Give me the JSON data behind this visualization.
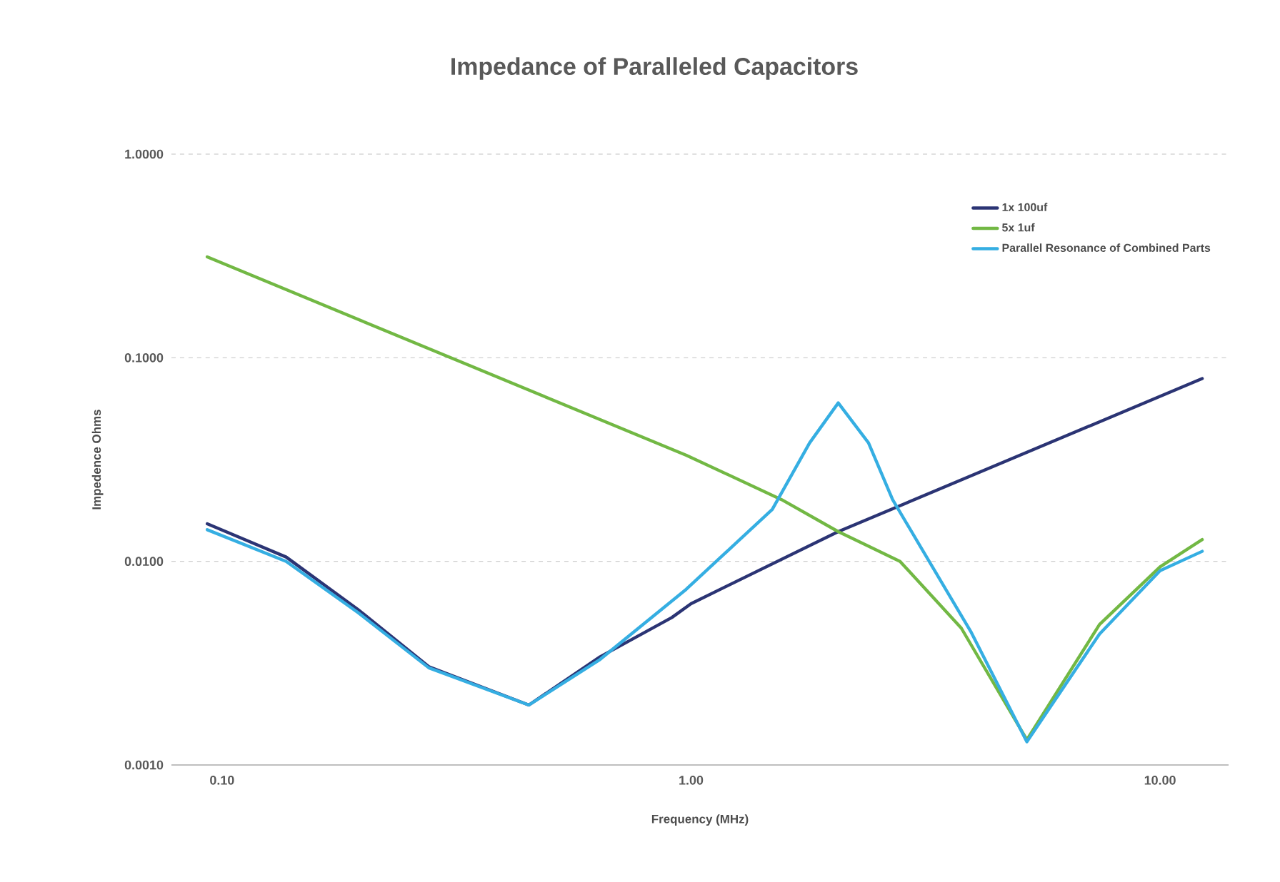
{
  "chart_data": {
    "type": "line",
    "title": "Impedance of Paralleled Capacitors",
    "xlabel": "Frequency (MHz)",
    "ylabel": "Impedence Ohms",
    "log": "xy",
    "grid": "y",
    "legend": "top right",
    "line_style": "solid",
    "xlim": [
      0.078,
      14
    ],
    "ylim": [
      0.001,
      1
    ],
    "xticks": [
      {
        "value": 0.1,
        "label": "0.10"
      },
      {
        "value": 1,
        "label": "1.00"
      },
      {
        "value": 10,
        "label": "10.00"
      }
    ],
    "yticks": [
      {
        "value": 0.001,
        "label": "0.0010"
      },
      {
        "value": 0.01,
        "label": "0.0100"
      },
      {
        "value": 0.1,
        "label": "0.1000"
      },
      {
        "value": 1,
        "label": "1.0000"
      }
    ],
    "series": [
      {
        "name": "1x 100uf",
        "color": "#2b3474",
        "x": [
          0.093,
          0.137,
          0.195,
          0.276,
          0.451,
          0.64,
          0.91,
          1.0,
          2.06,
          12.3
        ],
        "values": [
          0.0153,
          0.0105,
          0.0058,
          0.00304,
          0.00197,
          0.0034,
          0.0053,
          0.0062,
          0.014,
          0.079
        ]
      },
      {
        "name": "5x 1uf",
        "color": "#72b844",
        "x": [
          0.093,
          0.977,
          1.56,
          2.06,
          2.79,
          3.77,
          5.2,
          7.43,
          10.0,
          12.3
        ],
        "values": [
          0.313,
          0.0332,
          0.0201,
          0.014,
          0.01,
          0.0047,
          0.00133,
          0.0049,
          0.0094,
          0.0128
        ]
      },
      {
        "name": "Parallel Resonance of Combined Parts",
        "color": "#35aee2",
        "x": [
          0.093,
          0.137,
          0.195,
          0.276,
          0.451,
          0.64,
          0.977,
          1.49,
          1.79,
          2.06,
          2.39,
          2.69,
          3.96,
          5.2,
          7.43,
          10.0,
          12.3
        ],
        "values": [
          0.0143,
          0.01,
          0.0056,
          0.003,
          0.00197,
          0.0033,
          0.0073,
          0.018,
          0.0382,
          0.06,
          0.0382,
          0.0201,
          0.00447,
          0.0013,
          0.0044,
          0.009,
          0.0112
        ]
      }
    ]
  }
}
